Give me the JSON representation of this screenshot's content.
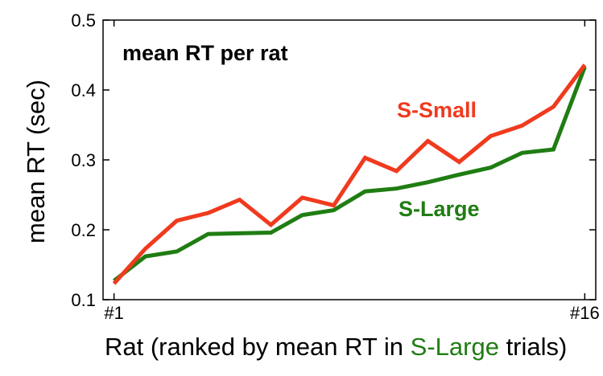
{
  "chart_data": {
    "type": "line",
    "title": "mean RT per rat",
    "ylabel": "mean RT  (sec)",
    "xlabel_parts": [
      "Rat (ranked by mean RT in ",
      "S-Large",
      " trials)"
    ],
    "x": [
      1,
      2,
      3,
      4,
      5,
      6,
      7,
      8,
      9,
      10,
      11,
      12,
      13,
      14,
      15,
      16
    ],
    "xlim": [
      0.65,
      16.35
    ],
    "x_tick_labels": [
      {
        "x": 1,
        "label": "#1"
      },
      {
        "x": 16,
        "label": "#16"
      }
    ],
    "ylim": [
      0.1,
      0.5
    ],
    "y_ticks": [
      0.1,
      0.2,
      0.3,
      0.4,
      0.5
    ],
    "y_tick_labels": [
      "0.1",
      "0.2",
      "0.3",
      "0.4",
      "0.5"
    ],
    "grid": false,
    "series": [
      {
        "name": "S-Small",
        "color": "#f03a1e",
        "values": [
          0.123,
          0.173,
          0.213,
          0.224,
          0.243,
          0.207,
          0.246,
          0.235,
          0.303,
          0.284,
          0.327,
          0.297,
          0.334,
          0.349,
          0.376,
          0.436
        ]
      },
      {
        "name": "S-Large",
        "color": "#1f7d12",
        "values": [
          0.127,
          0.162,
          0.169,
          0.194,
          0.195,
          0.196,
          0.221,
          0.228,
          0.255,
          0.259,
          0.268,
          0.279,
          0.289,
          0.31,
          0.315,
          0.433
        ]
      }
    ]
  }
}
